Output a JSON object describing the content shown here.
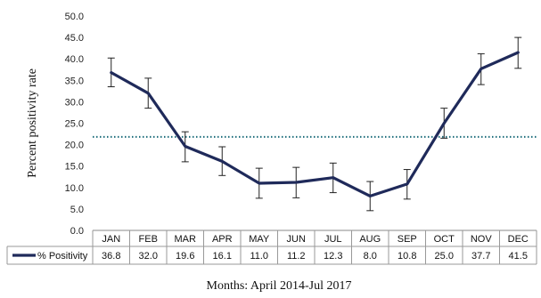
{
  "chart_data": {
    "type": "line",
    "ylabel": "Percent positivity rate",
    "xlabel": "Months: April 2014-Jul 2017",
    "ylim": [
      0,
      50
    ],
    "yticks": [
      "0.0",
      "5.0",
      "10.0",
      "15.0",
      "20.0",
      "25.0",
      "30.0",
      "35.0",
      "40.0",
      "45.0",
      "50.0"
    ],
    "categories": [
      "JAN",
      "FEB",
      "MAR",
      "APR",
      "MAY",
      "JUN",
      "JUL",
      "AUG",
      "SEP",
      "OCT",
      "NOV",
      "DEC"
    ],
    "series": [
      {
        "name": "% Positivity",
        "color": "#1f2a5a",
        "values": [
          36.8,
          32.0,
          19.6,
          16.1,
          11.0,
          11.2,
          12.3,
          8.0,
          10.8,
          25.0,
          37.7,
          41.5
        ],
        "labels": [
          "36.8",
          "32.0",
          "19.6",
          "16.1",
          "11.0",
          "11.2",
          "12.3",
          "8.0",
          "10.8",
          "25.0",
          "37.7",
          "41.5"
        ],
        "error_low": [
          33.5,
          28.5,
          16.0,
          12.8,
          7.5,
          7.6,
          8.8,
          4.6,
          7.3,
          21.5,
          34.0,
          37.8
        ],
        "error_high": [
          40.2,
          35.5,
          23.0,
          19.5,
          14.5,
          14.7,
          15.7,
          11.4,
          14.2,
          28.5,
          41.2,
          45.0
        ]
      }
    ],
    "reference_line": {
      "value": 21.8,
      "style": "dotted",
      "color": "#1a6b7a"
    },
    "grid": false,
    "legend": "bottom-left"
  }
}
